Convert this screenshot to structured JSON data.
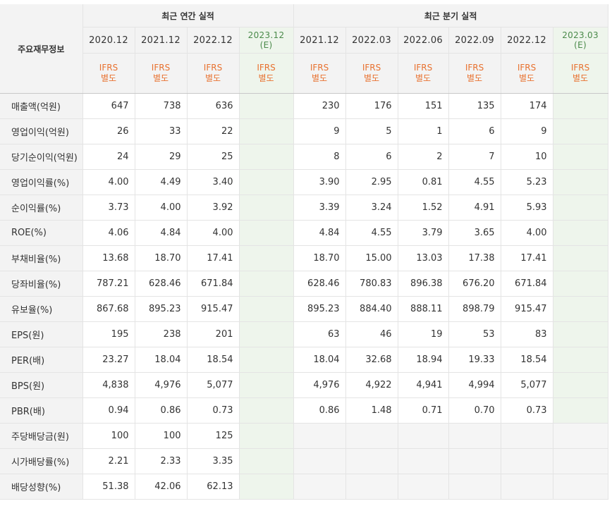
{
  "header": {
    "corner": "주요재무정보",
    "annual_group": "최근 연간 실적",
    "quarter_group": "최근 분기 실적",
    "annual_periods": [
      "2020.12",
      "2021.12",
      "2022.12",
      "2023.12"
    ],
    "annual_est_mark": "(E)",
    "quarter_periods": [
      "2021.12",
      "2022.03",
      "2022.06",
      "2022.09",
      "2022.12",
      "2023.03"
    ],
    "quarter_est_mark": "(E)",
    "ifrs_line1": "IFRS",
    "ifrs_line2": "별도"
  },
  "rows": [
    {
      "label": "매출액(억원)",
      "annual": [
        "647",
        "738",
        "636",
        ""
      ],
      "quarter": [
        "230",
        "176",
        "151",
        "135",
        "174",
        ""
      ]
    },
    {
      "label": "영업이익(억원)",
      "annual": [
        "26",
        "33",
        "22",
        ""
      ],
      "quarter": [
        "9",
        "5",
        "1",
        "6",
        "9",
        ""
      ]
    },
    {
      "label": "당기순이익(억원)",
      "annual": [
        "24",
        "29",
        "25",
        ""
      ],
      "quarter": [
        "8",
        "6",
        "2",
        "7",
        "10",
        ""
      ]
    },
    {
      "label": "영업이익률(%)",
      "annual": [
        "4.00",
        "4.49",
        "3.40",
        ""
      ],
      "quarter": [
        "3.90",
        "2.95",
        "0.81",
        "4.55",
        "5.23",
        ""
      ]
    },
    {
      "label": "순이익률(%)",
      "annual": [
        "3.73",
        "4.00",
        "3.92",
        ""
      ],
      "quarter": [
        "3.39",
        "3.24",
        "1.52",
        "4.91",
        "5.93",
        ""
      ]
    },
    {
      "label": "ROE(%)",
      "annual": [
        "4.06",
        "4.84",
        "4.00",
        ""
      ],
      "quarter": [
        "4.84",
        "4.55",
        "3.79",
        "3.65",
        "4.00",
        ""
      ]
    },
    {
      "label": "부채비율(%)",
      "annual": [
        "13.68",
        "18.70",
        "17.41",
        ""
      ],
      "quarter": [
        "18.70",
        "15.00",
        "13.03",
        "17.38",
        "17.41",
        ""
      ]
    },
    {
      "label": "당좌비율(%)",
      "annual": [
        "787.21",
        "628.46",
        "671.84",
        ""
      ],
      "quarter": [
        "628.46",
        "780.83",
        "896.38",
        "676.20",
        "671.84",
        ""
      ]
    },
    {
      "label": "유보율(%)",
      "annual": [
        "867.68",
        "895.23",
        "915.47",
        ""
      ],
      "quarter": [
        "895.23",
        "884.40",
        "888.11",
        "898.79",
        "915.47",
        ""
      ]
    },
    {
      "label": "EPS(원)",
      "annual": [
        "195",
        "238",
        "201",
        ""
      ],
      "quarter": [
        "63",
        "46",
        "19",
        "53",
        "83",
        ""
      ]
    },
    {
      "label": "PER(배)",
      "annual": [
        "23.27",
        "18.04",
        "18.54",
        ""
      ],
      "quarter": [
        "18.04",
        "32.68",
        "18.94",
        "19.33",
        "18.54",
        ""
      ]
    },
    {
      "label": "BPS(원)",
      "annual": [
        "4,838",
        "4,976",
        "5,077",
        ""
      ],
      "quarter": [
        "4,976",
        "4,922",
        "4,941",
        "4,994",
        "5,077",
        ""
      ]
    },
    {
      "label": "PBR(배)",
      "annual": [
        "0.94",
        "0.86",
        "0.73",
        ""
      ],
      "quarter": [
        "0.86",
        "1.48",
        "0.71",
        "0.70",
        "0.73",
        ""
      ]
    },
    {
      "label": "주당배당금(원)",
      "annual": [
        "100",
        "100",
        "125",
        ""
      ],
      "quarter": null
    },
    {
      "label": "시가배당률(%)",
      "annual": [
        "2.21",
        "2.33",
        "3.35",
        ""
      ],
      "quarter": null
    },
    {
      "label": "배당성향(%)",
      "annual": [
        "51.38",
        "42.06",
        "62.13",
        ""
      ],
      "quarter": null
    }
  ],
  "separators_before_rows": [
    3,
    6,
    9,
    13
  ],
  "colors": {
    "ifrs": "#e8712f",
    "estimate_text": "#4a8a4a",
    "estimate_bg": "#eef5ec",
    "header_bg": "#f3f3f3"
  }
}
